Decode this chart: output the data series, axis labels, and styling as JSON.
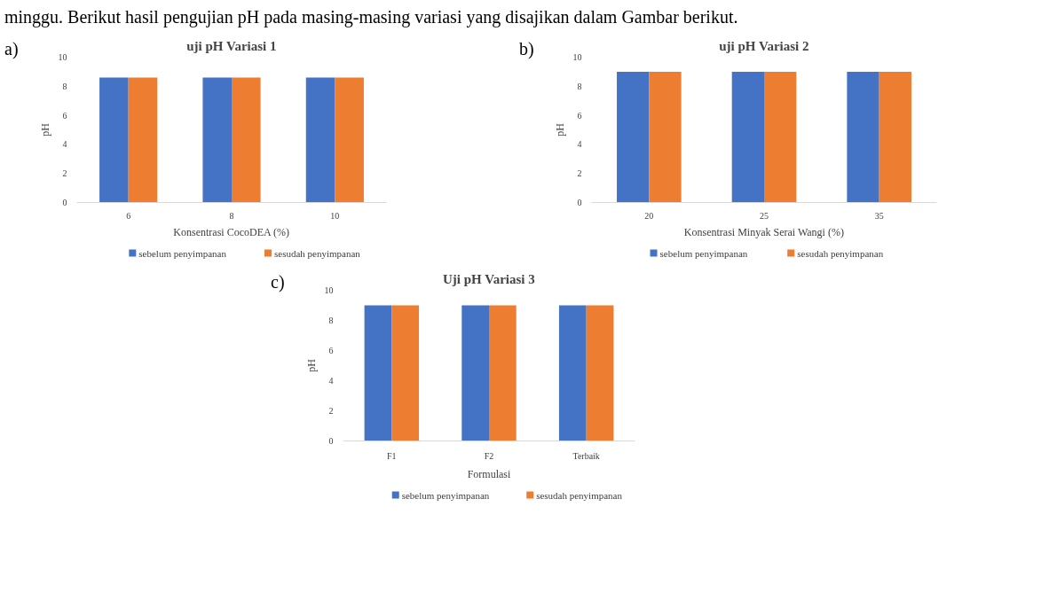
{
  "chart_data": [
    {
      "type": "bar",
      "title": "uji pH Variasi 1",
      "xlabel": "Konsentrasi CocoDEA (%)",
      "ylabel": "pH",
      "categories": [
        "6",
        "8",
        "10"
      ],
      "series": [
        {
          "name": "sebelum penyimpanan",
          "color": "#4472c4",
          "values": [
            8.6,
            8.6,
            8.6
          ]
        },
        {
          "name": "sesudah penyimpanan",
          "color": "#ed7d31",
          "values": [
            8.6,
            8.6,
            8.6
          ]
        }
      ],
      "ylim": [
        0,
        10
      ],
      "yticks": [
        0,
        2,
        4,
        6,
        8,
        10
      ],
      "legend": "bottom",
      "annotations": [
        "minggu. Berikut hasil pengujian pH pada masing-masing variasi yang disajikan dalam Gambar berikut.",
        "a)"
      ]
    },
    {
      "type": "bar",
      "title": "uji pH Variasi 2",
      "xlabel": "Konsentrasi Minyak Serai Wangi (%)",
      "ylabel": "pH",
      "categories": [
        "20",
        "25",
        "35"
      ],
      "series": [
        {
          "name": "sebelum penyimpanan",
          "color": "#4472c4",
          "values": [
            9,
            9,
            9
          ]
        },
        {
          "name": "sesudah penyimpanan",
          "color": "#ed7d31",
          "values": [
            9,
            9,
            9
          ]
        }
      ],
      "ylim": [
        0,
        10
      ],
      "yticks": [
        0,
        2,
        4,
        6,
        8,
        10
      ],
      "legend": "bottom",
      "annotations": [
        "b)"
      ]
    },
    {
      "type": "bar",
      "title": "Uji pH Variasi 3",
      "xlabel": "Formulasi",
      "ylabel": "pH",
      "categories": [
        "F1",
        "F2",
        "Terbaik"
      ],
      "series": [
        {
          "name": "sebelum penyimpanan",
          "color": "#4472c4",
          "values": [
            9,
            9,
            9
          ]
        },
        {
          "name": "sesudah penyimpanan",
          "color": "#ed7d31",
          "values": [
            9,
            9,
            9
          ]
        }
      ],
      "ylim": [
        0,
        10
      ],
      "yticks": [
        0,
        2,
        4,
        6,
        8,
        10
      ],
      "legend": "bottom",
      "annotations": [
        "c)"
      ]
    }
  ]
}
